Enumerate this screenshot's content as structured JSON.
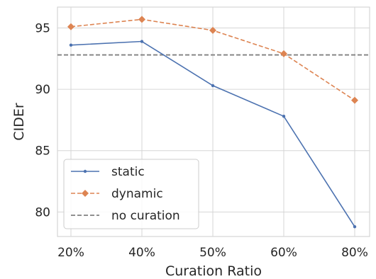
{
  "chart_data": {
    "type": "line",
    "xlabel": "Curation Ratio",
    "ylabel": "CIDEr",
    "categories": [
      "20%",
      "40%",
      "50%",
      "60%",
      "80%"
    ],
    "ylim": [
      78.0,
      96.7
    ],
    "yticks": [
      80,
      85,
      90,
      95
    ],
    "grid": true,
    "legend_position": "lower-left",
    "series": [
      {
        "name": "static",
        "values": [
          93.6,
          93.9,
          90.3,
          87.8,
          78.8
        ],
        "color": "#4c72b0",
        "marker": "circle",
        "dashed": false
      },
      {
        "name": "dynamic",
        "values": [
          95.1,
          95.7,
          94.8,
          92.9,
          89.1
        ],
        "color": "#dd8452",
        "marker": "diamond",
        "dashed": true
      }
    ],
    "reference_line": {
      "name": "no curation",
      "value": 92.8,
      "color": "#808080"
    }
  }
}
